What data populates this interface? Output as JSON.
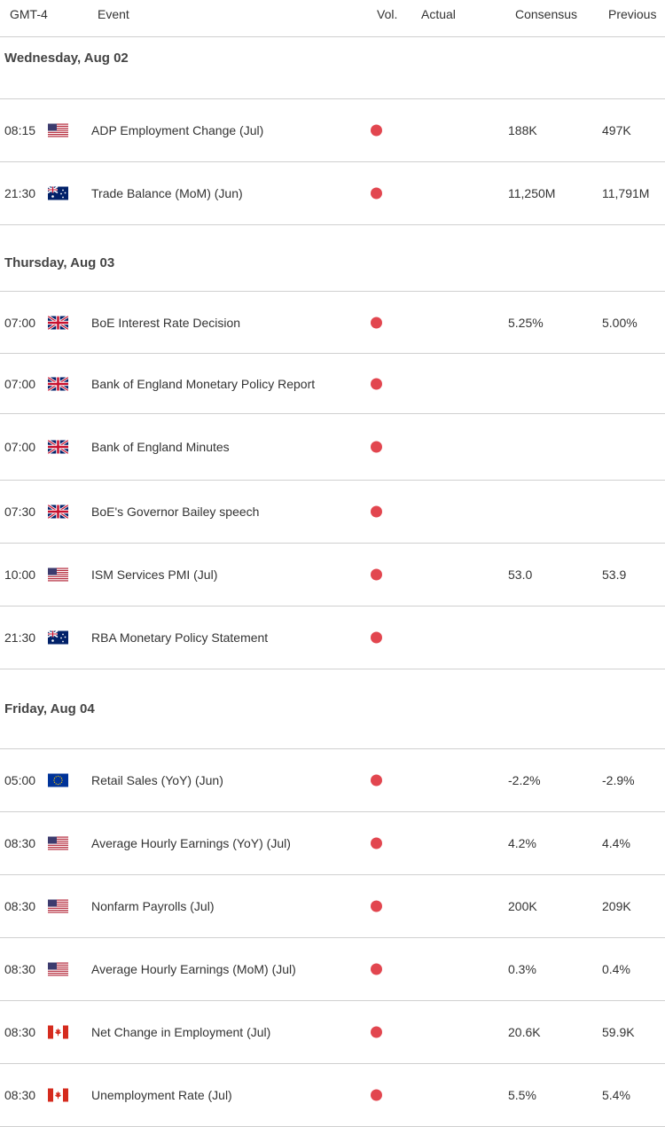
{
  "header": {
    "timezone": "GMT-4",
    "event": "Event",
    "vol": "Vol.",
    "actual": "Actual",
    "consensus": "Consensus",
    "previous": "Previous"
  },
  "days": [
    {
      "label": "Wednesday, Aug 02",
      "events": [
        {
          "time": "08:15",
          "flag": "us-flag-icon",
          "name": "ADP Employment Change (Jul)",
          "consensus": "188K",
          "previous": "497K"
        },
        {
          "time": "21:30",
          "flag": "au-flag-icon",
          "name": "Trade Balance (MoM) (Jun)",
          "consensus": "11,250M",
          "previous": "11,791M"
        }
      ]
    },
    {
      "label": "Thursday, Aug 03",
      "events": [
        {
          "time": "07:00",
          "flag": "uk-flag-icon",
          "name": "BoE Interest Rate Decision",
          "consensus": "5.25%",
          "previous": "5.00%"
        },
        {
          "time": "07:00",
          "flag": "uk-flag-icon",
          "name": "Bank of England Monetary Policy Report",
          "consensus": "",
          "previous": ""
        },
        {
          "time": "07:00",
          "flag": "uk-flag-icon",
          "name": "Bank of England Minutes",
          "consensus": "",
          "previous": ""
        },
        {
          "time": "07:30",
          "flag": "uk-flag-icon",
          "name": "BoE's Governor Bailey speech",
          "consensus": "",
          "previous": ""
        },
        {
          "time": "10:00",
          "flag": "us-flag-icon",
          "name": "ISM Services PMI (Jul)",
          "consensus": "53.0",
          "previous": "53.9"
        },
        {
          "time": "21:30",
          "flag": "au-flag-icon",
          "name": "RBA Monetary Policy Statement",
          "consensus": "",
          "previous": ""
        }
      ]
    },
    {
      "label": "Friday, Aug 04",
      "events": [
        {
          "time": "05:00",
          "flag": "eu-flag-icon",
          "name": "Retail Sales (YoY) (Jun)",
          "consensus": "-2.2%",
          "previous": "-2.9%"
        },
        {
          "time": "08:30",
          "flag": "us-flag-icon",
          "name": "Average Hourly Earnings (YoY) (Jul)",
          "consensus": "4.2%",
          "previous": "4.4%"
        },
        {
          "time": "08:30",
          "flag": "us-flag-icon",
          "name": "Nonfarm Payrolls (Jul)",
          "consensus": "200K",
          "previous": "209K"
        },
        {
          "time": "08:30",
          "flag": "us-flag-icon",
          "name": "Average Hourly Earnings (MoM) (Jul)",
          "consensus": "0.3%",
          "previous": "0.4%"
        },
        {
          "time": "08:30",
          "flag": "ca-flag-icon",
          "name": "Net Change in Employment (Jul)",
          "consensus": "20.6K",
          "previous": "59.9K"
        },
        {
          "time": "08:30",
          "flag": "ca-flag-icon",
          "name": "Unemployment Rate (Jul)",
          "consensus": "5.5%",
          "previous": "5.4%"
        }
      ]
    }
  ],
  "colors": {
    "high_volatility": "#e2464f",
    "divider": "#d0d0d0"
  }
}
